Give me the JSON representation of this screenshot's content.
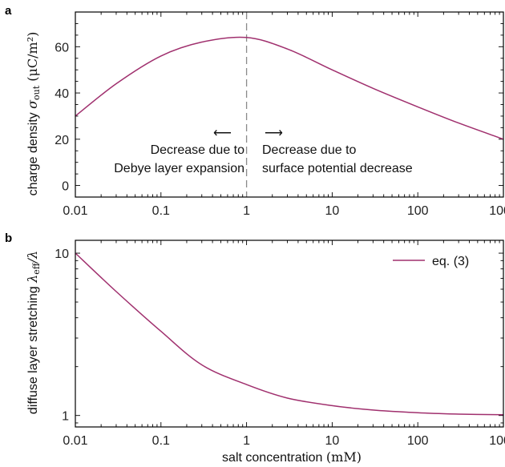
{
  "chart_data": [
    {
      "panel": "a",
      "type": "line",
      "xscale": "log",
      "xlim": [
        0.01,
        1000
      ],
      "ylim": [
        -5,
        75
      ],
      "yticks": [
        0,
        20,
        40,
        60
      ],
      "xticks": [
        0.01,
        0.1,
        1,
        10,
        100,
        1000
      ],
      "xticklabels": [
        "0.01",
        "0.1",
        "1",
        "10",
        "100",
        "1000"
      ],
      "ylabel_text": "charge density ",
      "ylabel_symbol": "σ",
      "ylabel_sub": "out",
      "ylabel_unit": " (μC/m²)",
      "color": "#a0306e",
      "series": [
        {
          "x": [
            0.01,
            0.03,
            0.1,
            0.3,
            1,
            3,
            10,
            30,
            100,
            300,
            1000
          ],
          "y": [
            30,
            44,
            56,
            62,
            64,
            59,
            50,
            42,
            34,
            27,
            20
          ]
        }
      ],
      "vline_x": 1,
      "annotations": {
        "left_arrow": "⟵",
        "right_arrow": "⟶",
        "left_line1": "Decrease due to",
        "left_line2": "Debye layer expansion",
        "right_line1": "Decrease due to",
        "right_line2": "surface potential decrease"
      }
    },
    {
      "panel": "b",
      "type": "line",
      "xscale": "log",
      "yscale": "log",
      "xlim": [
        0.01,
        1000
      ],
      "ylim": [
        0.85,
        12
      ],
      "yticks": [
        1,
        10
      ],
      "yticklabels": [
        "1",
        "10"
      ],
      "xticks": [
        0.01,
        0.1,
        1,
        10,
        100,
        1000
      ],
      "xticklabels": [
        "0.01",
        "0.1",
        "1",
        "10",
        "100",
        "1000"
      ],
      "ylabel_text": "diffuse layer stretching ",
      "ylabel_symbol": "λ",
      "ylabel_sub": "eff",
      "ylabel_symbol2": "/λ",
      "xlabel_text": "salt concentration ",
      "xlabel_unit": "(mM)",
      "legend": "top-right",
      "color": "#a0306e",
      "series": [
        {
          "name": "eq. (3)",
          "x": [
            0.01,
            0.03,
            0.1,
            0.3,
            1,
            3,
            10,
            30,
            100,
            300,
            1000
          ],
          "y": [
            10,
            5.8,
            3.3,
            2.05,
            1.55,
            1.28,
            1.15,
            1.08,
            1.04,
            1.02,
            1.01
          ]
        }
      ]
    }
  ],
  "panel_letters": [
    "a",
    "b"
  ]
}
